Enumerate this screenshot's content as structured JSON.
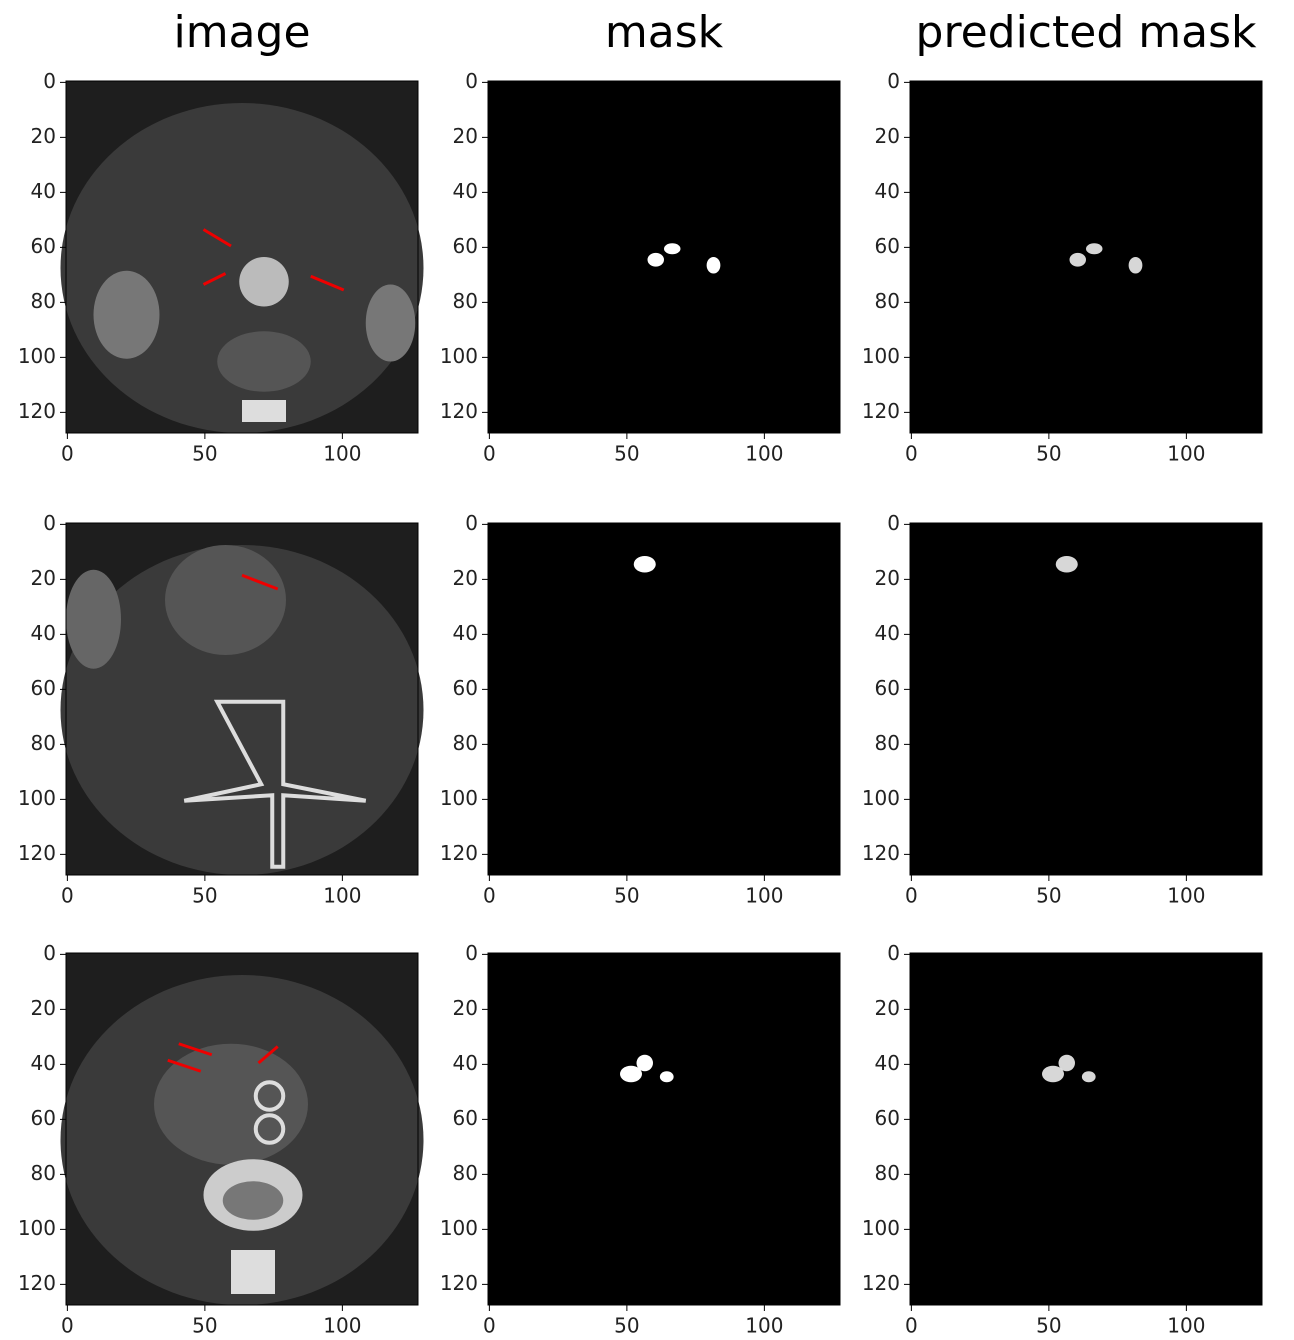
{
  "chart_data": [
    {
      "type": "image",
      "title": "image",
      "xlim": [
        -0.5,
        127.5
      ],
      "ylim": [
        127.5,
        -0.5
      ],
      "xticks": [
        0,
        50,
        100
      ],
      "yticks": [
        0,
        20,
        40,
        60,
        80,
        100,
        120
      ]
    },
    {
      "type": "image",
      "title": "mask",
      "xlim": [
        -0.5,
        127.5
      ],
      "ylim": [
        127.5,
        -0.5
      ],
      "xticks": [
        0,
        50,
        100
      ],
      "yticks": [
        0,
        20,
        40,
        60,
        80,
        100,
        120
      ]
    },
    {
      "type": "image",
      "title": "predicted mask",
      "xlim": [
        -0.5,
        127.5
      ],
      "ylim": [
        127.5,
        -0.5
      ],
      "xticks": [
        0,
        50,
        100
      ],
      "yticks": [
        0,
        20,
        40,
        60,
        80,
        100,
        120
      ]
    },
    {
      "type": "image",
      "xlim": [
        -0.5,
        127.5
      ],
      "ylim": [
        127.5,
        -0.5
      ],
      "xticks": [
        0,
        50,
        100
      ],
      "yticks": [
        0,
        20,
        40,
        60,
        80,
        100,
        120
      ]
    },
    {
      "type": "image",
      "xlim": [
        -0.5,
        127.5
      ],
      "ylim": [
        127.5,
        -0.5
      ],
      "xticks": [
        0,
        50,
        100
      ],
      "yticks": [
        0,
        20,
        40,
        60,
        80,
        100,
        120
      ]
    },
    {
      "type": "image",
      "xlim": [
        -0.5,
        127.5
      ],
      "ylim": [
        127.5,
        -0.5
      ],
      "xticks": [
        0,
        50,
        100
      ],
      "yticks": [
        0,
        20,
        40,
        60,
        80,
        100,
        120
      ]
    },
    {
      "type": "image",
      "xlim": [
        -0.5,
        127.5
      ],
      "ylim": [
        127.5,
        -0.5
      ],
      "xticks": [
        0,
        50,
        100
      ],
      "yticks": [
        0,
        20,
        40,
        60,
        80,
        100,
        120
      ]
    },
    {
      "type": "image",
      "xlim": [
        -0.5,
        127.5
      ],
      "ylim": [
        127.5,
        -0.5
      ],
      "xticks": [
        0,
        50,
        100
      ],
      "yticks": [
        0,
        20,
        40,
        60,
        80,
        100,
        120
      ]
    },
    {
      "type": "image",
      "xlim": [
        -0.5,
        127.5
      ],
      "ylim": [
        127.5,
        -0.5
      ],
      "xticks": [
        0,
        50,
        100
      ],
      "yticks": [
        0,
        20,
        40,
        60,
        80,
        100,
        120
      ]
    }
  ]
}
